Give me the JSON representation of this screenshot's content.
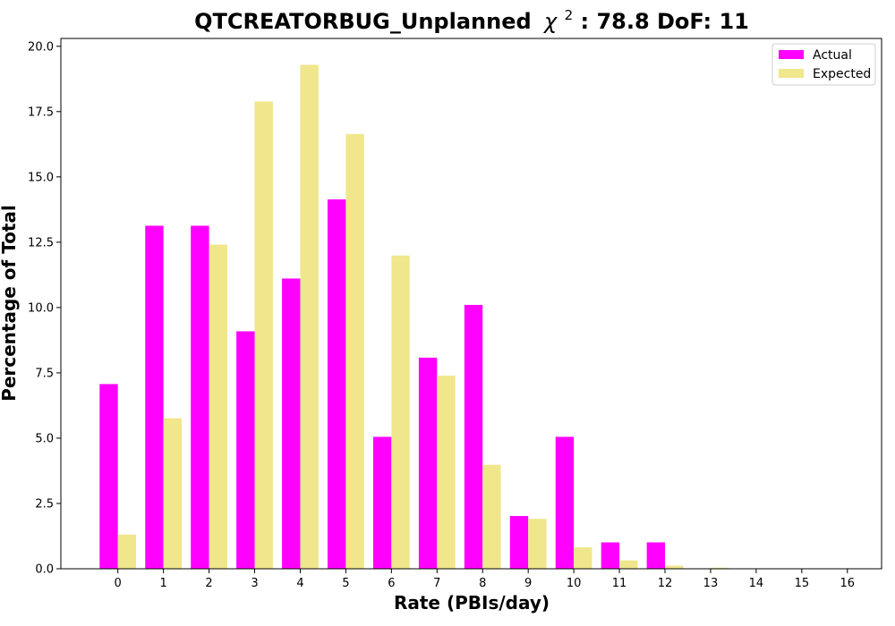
{
  "chart_data": {
    "type": "bar",
    "title": "QTCREATORBUG_Unplanned",
    "title_chi_symbol": "χ",
    "title_chi_exponent": "2",
    "title_suffix": ": 78.8 DoF: 11",
    "xlabel": "Rate (PBIs/day)",
    "ylabel": "Percentage of Total",
    "categories": [
      "0",
      "1",
      "2",
      "3",
      "4",
      "5",
      "6",
      "7",
      "8",
      "9",
      "10",
      "11",
      "12",
      "13",
      "14",
      "15",
      "16"
    ],
    "xlim": [
      -1.25,
      16.75
    ],
    "ylim": [
      0,
      20.3
    ],
    "yticks": [
      0.0,
      2.5,
      5.0,
      7.5,
      10.0,
      12.5,
      15.0,
      17.5,
      20.0
    ],
    "ytick_labels": [
      "0.0",
      "2.5",
      "5.0",
      "7.5",
      "10.0",
      "12.5",
      "15.0",
      "17.5",
      "20.0"
    ],
    "grid": false,
    "legend_position": "top-right",
    "series": [
      {
        "name": "Actual",
        "color": "#ff00ff",
        "values": [
          7.07,
          13.13,
          13.13,
          9.09,
          11.11,
          14.14,
          5.05,
          8.08,
          10.1,
          2.02,
          5.05,
          1.01,
          1.01,
          0,
          0,
          0,
          0
        ]
      },
      {
        "name": "Expected",
        "color": "#f0e68c",
        "values": [
          1.31,
          5.76,
          12.41,
          17.89,
          19.29,
          16.64,
          11.99,
          7.39,
          3.98,
          1.91,
          0.82,
          0.32,
          0.12,
          0.04,
          0.01,
          0.0,
          0.0
        ]
      }
    ]
  }
}
